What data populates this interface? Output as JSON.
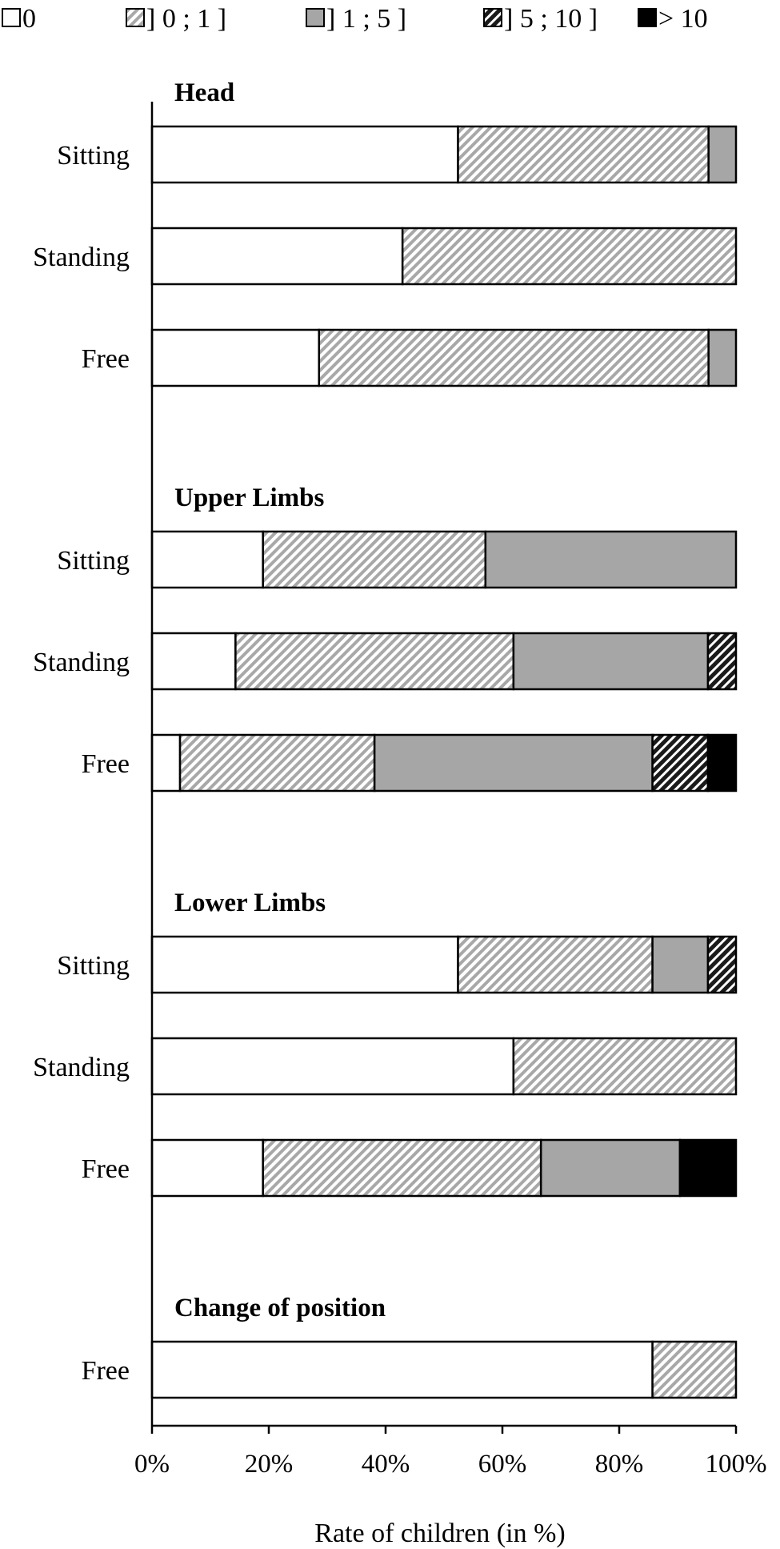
{
  "chart_data": {
    "type": "bar",
    "orientation": "horizontal",
    "stacked": "percent",
    "xlabel": "Rate of children (in %)",
    "xlim": [
      0,
      100
    ],
    "x_ticks": [
      "0%",
      "20%",
      "40%",
      "60%",
      "80%",
      "100%"
    ],
    "legend_position": "top",
    "legend": [
      {
        "label": "0",
        "fill": "#ffffff",
        "pattern": "none"
      },
      {
        "label": "] 0 ; 1 ]",
        "fill": "#d9d9d9",
        "pattern": "diagonal-light"
      },
      {
        "label": "] 1 ; 5 ]",
        "fill": "#a6a6a6",
        "pattern": "none"
      },
      {
        "label": "] 5 ; 10 ]",
        "fill": "#3a3a3a",
        "pattern": "diagonal-dark"
      },
      {
        "label": "> 10",
        "fill": "#000000",
        "pattern": "none"
      }
    ],
    "groups": [
      {
        "title": "Head",
        "bars": [
          {
            "label": "Sitting",
            "values": [
              52.4,
              42.9,
              4.7,
              0,
              0
            ]
          },
          {
            "label": "Standing",
            "values": [
              42.9,
              57.1,
              0,
              0,
              0
            ]
          },
          {
            "label": "Free",
            "values": [
              28.6,
              66.7,
              4.7,
              0,
              0
            ]
          }
        ]
      },
      {
        "title": "Upper Limbs",
        "bars": [
          {
            "label": "Sitting",
            "values": [
              19.0,
              38.1,
              42.9,
              0,
              0
            ]
          },
          {
            "label": "Standing",
            "values": [
              14.3,
              47.6,
              33.3,
              4.8,
              0
            ]
          },
          {
            "label": "Free",
            "values": [
              4.8,
              33.3,
              47.6,
              9.5,
              4.8
            ]
          }
        ]
      },
      {
        "title": "Lower Limbs",
        "bars": [
          {
            "label": "Sitting",
            "values": [
              52.4,
              33.3,
              9.5,
              4.8,
              0
            ]
          },
          {
            "label": "Standing",
            "values": [
              61.9,
              38.1,
              0,
              0,
              0
            ]
          },
          {
            "label": "Free",
            "values": [
              19.0,
              47.6,
              23.8,
              0,
              9.6
            ]
          }
        ]
      },
      {
        "title": "Change of position",
        "bars": [
          {
            "label": "Free",
            "values": [
              85.7,
              14.3,
              0,
              0,
              0
            ]
          }
        ]
      }
    ]
  }
}
